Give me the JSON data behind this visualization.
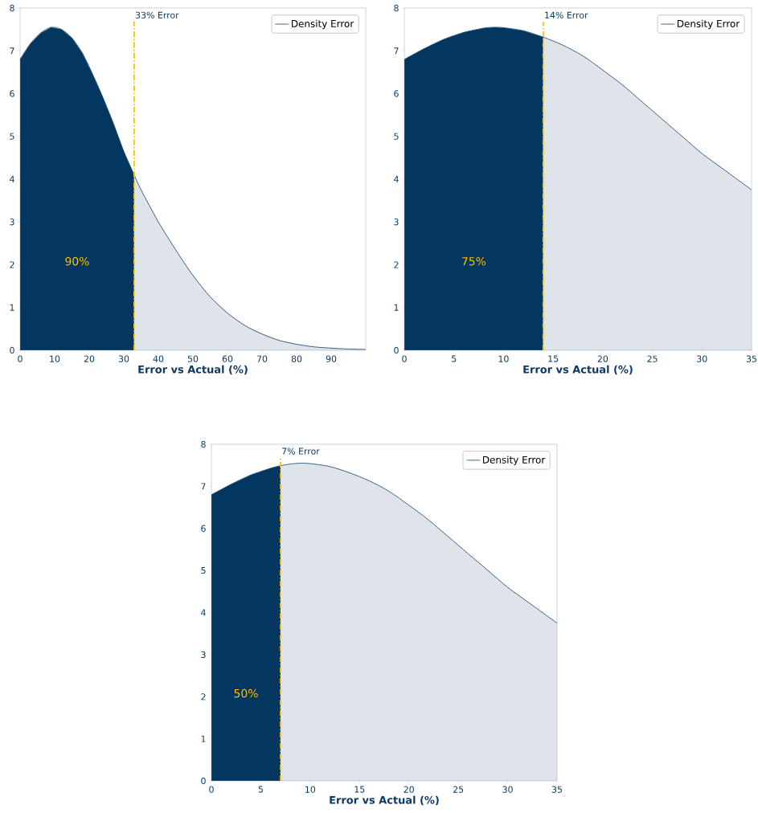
{
  "chart_data": [
    {
      "type": "area",
      "xlabel": "Error vs Actual (%)",
      "xlim": [
        0,
        100
      ],
      "xticks": [
        0,
        10,
        20,
        30,
        40,
        50,
        60,
        70,
        80,
        90
      ],
      "ylim": [
        0,
        8
      ],
      "yticks": [
        0,
        1,
        2,
        3,
        4,
        5,
        6,
        7,
        8
      ],
      "grid": false,
      "legend": "top right",
      "series": [
        {
          "type": "area",
          "color": "#03375f",
          "x": [
            0,
            3,
            6,
            9,
            12,
            15,
            18,
            21,
            24,
            27,
            30,
            33
          ],
          "values": [
            6.8,
            7.17,
            7.42,
            7.55,
            7.5,
            7.3,
            6.95,
            6.45,
            5.9,
            5.3,
            4.65,
            4.1
          ]
        },
        {
          "type": "area",
          "color": "#dfe4eb",
          "x": [
            33,
            35,
            40,
            45,
            50,
            55,
            60,
            65,
            70,
            75,
            80,
            85,
            90,
            95,
            100
          ],
          "values": [
            4.1,
            3.75,
            3.0,
            2.35,
            1.75,
            1.25,
            0.87,
            0.58,
            0.38,
            0.23,
            0.14,
            0.08,
            0.05,
            0.03,
            0.02
          ]
        },
        {
          "type": "line",
          "name": "Density Error",
          "color": "#0e3d66",
          "x": [
            0,
            3,
            6,
            9,
            12,
            15,
            18,
            21,
            24,
            27,
            30,
            33,
            35,
            40,
            45,
            50,
            55,
            60,
            65,
            70,
            75,
            80,
            85,
            90,
            95,
            100
          ],
          "values": [
            6.8,
            7.17,
            7.42,
            7.55,
            7.5,
            7.3,
            6.95,
            6.45,
            5.9,
            5.3,
            4.65,
            4.1,
            3.75,
            3.0,
            2.35,
            1.75,
            1.25,
            0.87,
            0.58,
            0.38,
            0.23,
            0.14,
            0.08,
            0.05,
            0.03,
            0.02
          ]
        }
      ],
      "ref_lines": [
        {
          "axis": "x",
          "value": 33,
          "label": "33% Error",
          "color": "#ffc000",
          "line_style": "dashed"
        }
      ],
      "annotations": [
        "90%"
      ]
    },
    {
      "type": "area",
      "xlabel": "Error vs Actual (%)",
      "xlim": [
        0,
        35
      ],
      "xticks": [
        0,
        5,
        10,
        15,
        20,
        25,
        30,
        35
      ],
      "ylim": [
        0,
        8
      ],
      "yticks": [
        0,
        1,
        2,
        3,
        4,
        5,
        6,
        7,
        8
      ],
      "grid": false,
      "legend": "top right",
      "series": [
        {
          "type": "area",
          "color": "#03375f",
          "x": [
            0,
            2,
            4,
            6,
            8,
            9,
            10,
            12,
            14
          ],
          "values": [
            6.8,
            7.05,
            7.27,
            7.43,
            7.53,
            7.55,
            7.54,
            7.47,
            7.32
          ]
        },
        {
          "type": "area",
          "color": "#dfe4eb",
          "x": [
            14,
            16,
            18,
            20,
            22,
            24,
            26,
            28,
            30,
            32,
            34,
            35
          ],
          "values": [
            7.32,
            7.13,
            6.88,
            6.55,
            6.2,
            5.8,
            5.4,
            5.0,
            4.6,
            4.26,
            3.92,
            3.75
          ]
        },
        {
          "type": "line",
          "name": "Density Error",
          "color": "#0e3d66",
          "x": [
            0,
            2,
            4,
            6,
            8,
            9,
            10,
            12,
            14,
            16,
            18,
            20,
            22,
            24,
            26,
            28,
            30,
            32,
            34,
            35
          ],
          "values": [
            6.8,
            7.05,
            7.27,
            7.43,
            7.53,
            7.55,
            7.54,
            7.47,
            7.32,
            7.13,
            6.88,
            6.55,
            6.2,
            5.8,
            5.4,
            5.0,
            4.6,
            4.26,
            3.92,
            3.75
          ]
        }
      ],
      "ref_lines": [
        {
          "axis": "x",
          "value": 14,
          "label": "14% Error",
          "color": "#ffc000",
          "line_style": "dashed"
        }
      ],
      "annotations": [
        "75%"
      ]
    },
    {
      "type": "area",
      "xlabel": "Error vs Actual (%)",
      "xlim": [
        0,
        35
      ],
      "xticks": [
        0,
        5,
        10,
        15,
        20,
        25,
        30,
        35
      ],
      "ylim": [
        0,
        8
      ],
      "yticks": [
        0,
        1,
        2,
        3,
        4,
        5,
        6,
        7,
        8
      ],
      "grid": false,
      "legend": "top right",
      "series": [
        {
          "type": "area",
          "color": "#03375f",
          "x": [
            0,
            2,
            4,
            6,
            7
          ],
          "values": [
            6.8,
            7.05,
            7.27,
            7.43,
            7.49
          ]
        },
        {
          "type": "area",
          "color": "#dfe4eb",
          "x": [
            7,
            8,
            9,
            10,
            12,
            14,
            16,
            18,
            20,
            22,
            24,
            26,
            28,
            30,
            32,
            34,
            35
          ],
          "values": [
            7.49,
            7.53,
            7.55,
            7.54,
            7.47,
            7.32,
            7.13,
            6.88,
            6.55,
            6.2,
            5.8,
            5.4,
            5.0,
            4.6,
            4.26,
            3.92,
            3.75
          ]
        },
        {
          "type": "line",
          "name": "Density Error",
          "color": "#0e3d66",
          "x": [
            0,
            2,
            4,
            6,
            7,
            8,
            9,
            10,
            12,
            14,
            16,
            18,
            20,
            22,
            24,
            26,
            28,
            30,
            32,
            34,
            35
          ],
          "values": [
            6.8,
            7.05,
            7.27,
            7.43,
            7.49,
            7.53,
            7.55,
            7.54,
            7.47,
            7.32,
            7.13,
            6.88,
            6.55,
            6.2,
            5.8,
            5.4,
            5.0,
            4.6,
            4.26,
            3.92,
            3.75
          ]
        }
      ],
      "ref_lines": [
        {
          "axis": "x",
          "value": 7,
          "label": "7% Error",
          "color": "#ffc000",
          "line_style": "dashed"
        }
      ],
      "annotations": [
        "50%"
      ]
    }
  ]
}
